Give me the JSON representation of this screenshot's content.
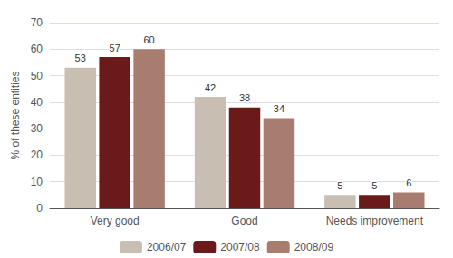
{
  "chart_data": {
    "type": "bar",
    "categories": [
      "Very good",
      "Good",
      "Needs improvement"
    ],
    "series": [
      {
        "name": "2006/07",
        "color": "#c8bfb2",
        "values": [
          53,
          42,
          5
        ]
      },
      {
        "name": "2007/08",
        "color": "#6b1a1a",
        "values": [
          57,
          38,
          5
        ]
      },
      {
        "name": "2008/09",
        "color": "#a87c6e",
        "values": [
          60,
          34,
          6
        ]
      }
    ],
    "ylabel": "% of these entities",
    "ylim": [
      0,
      70
    ],
    "yticks": [
      0,
      10,
      20,
      30,
      40,
      50,
      60,
      70
    ],
    "grid": true,
    "legend": "bottom",
    "data_labels": true
  }
}
